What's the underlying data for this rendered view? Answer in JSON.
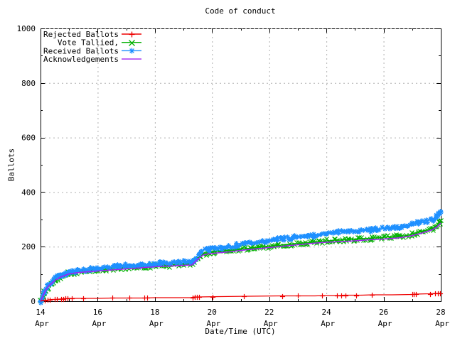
{
  "window": {
    "title": "Code of conduct"
  },
  "chart_data": {
    "type": "line",
    "title": "Code of conduct",
    "xlabel": "Date/Time (UTC)",
    "ylabel": "Ballots",
    "ylim": [
      0,
      1000
    ],
    "xlim_days": [
      14,
      28
    ],
    "x_month": "Apr",
    "x_major_ticks": [
      14,
      16,
      18,
      20,
      22,
      24,
      26,
      28
    ],
    "y_major_ticks": [
      0,
      200,
      400,
      600,
      800,
      1000
    ],
    "y_minor_step": 100,
    "grid": "dashed-gray",
    "grid_color": "#b0b0b0",
    "legend_position": "top-left-inside",
    "series": [
      {
        "name": "Rejected Ballots",
        "color": "#ee0000",
        "marker": "plus",
        "band": false,
        "points": [
          [
            14,
            0
          ],
          [
            14.08,
            2
          ],
          [
            14.18,
            3
          ],
          [
            14.28,
            5
          ],
          [
            14.4,
            6
          ],
          [
            14.52,
            7
          ],
          [
            14.65,
            8
          ],
          [
            14.8,
            9
          ],
          [
            15,
            10
          ],
          [
            15.3,
            11
          ],
          [
            16,
            11
          ],
          [
            16.5,
            12
          ],
          [
            17.6,
            12
          ],
          [
            18,
            13
          ],
          [
            19.25,
            13
          ],
          [
            19.38,
            15
          ],
          [
            19.5,
            16
          ],
          [
            20.3,
            17
          ],
          [
            21.3,
            18
          ],
          [
            22.4,
            19
          ],
          [
            22.9,
            20
          ],
          [
            23.6,
            20
          ],
          [
            24,
            21
          ],
          [
            24.45,
            21
          ],
          [
            24.6,
            22
          ],
          [
            25.2,
            22
          ],
          [
            25.6,
            23
          ],
          [
            26.3,
            24
          ],
          [
            27,
            25
          ],
          [
            27.1,
            26
          ],
          [
            27.6,
            27
          ],
          [
            27.8,
            28
          ],
          [
            27.92,
            29
          ],
          [
            28,
            30
          ]
        ],
        "marker_days": [
          14.15,
          14.25,
          14.32,
          14.5,
          14.57,
          14.73,
          14.8,
          14.87,
          14.95,
          15.1,
          15.5,
          16.5,
          17.1,
          17.62,
          17.73,
          19.33,
          19.4,
          19.47,
          19.54,
          20.02,
          21.1,
          22.45,
          23.0,
          23.85,
          24.38,
          24.52,
          24.68,
          25.05,
          25.58,
          27.0,
          27.06,
          27.13,
          27.62,
          27.8,
          27.9,
          27.97
        ]
      },
      {
        "name": "Vote Tallied,",
        "color": "#00b000",
        "marker": "cross",
        "band": true,
        "points": [
          [
            14,
            1
          ],
          [
            14.05,
            11
          ],
          [
            14.1,
            22
          ],
          [
            14.15,
            33
          ],
          [
            14.2,
            43
          ],
          [
            14.27,
            52
          ],
          [
            14.35,
            61
          ],
          [
            14.43,
            69
          ],
          [
            14.52,
            77
          ],
          [
            14.6,
            83
          ],
          [
            14.68,
            89
          ],
          [
            14.77,
            94
          ],
          [
            14.85,
            98
          ],
          [
            14.95,
            102
          ],
          [
            15.1,
            105
          ],
          [
            15.3,
            108
          ],
          [
            15.5,
            111
          ],
          [
            15.75,
            113
          ],
          [
            16,
            116
          ],
          [
            16.3,
            118
          ],
          [
            16.6,
            121
          ],
          [
            17,
            124
          ],
          [
            17.3,
            126
          ],
          [
            17.6,
            128
          ],
          [
            18,
            131
          ],
          [
            18.4,
            133
          ],
          [
            18.8,
            135
          ],
          [
            19.1,
            136
          ],
          [
            19.3,
            138
          ],
          [
            19.42,
            150
          ],
          [
            19.55,
            163
          ],
          [
            19.68,
            172
          ],
          [
            19.8,
            177
          ],
          [
            20,
            181
          ],
          [
            20.3,
            184
          ],
          [
            20.6,
            187
          ],
          [
            20.9,
            190
          ],
          [
            21.2,
            193
          ],
          [
            21.5,
            197
          ],
          [
            21.8,
            200
          ],
          [
            22.1,
            203
          ],
          [
            22.4,
            206
          ],
          [
            22.7,
            209
          ],
          [
            23,
            212
          ],
          [
            23.3,
            215
          ],
          [
            23.6,
            217
          ],
          [
            23.9,
            220
          ],
          [
            24.2,
            223
          ],
          [
            24.5,
            225
          ],
          [
            24.8,
            227
          ],
          [
            25.1,
            229
          ],
          [
            25.5,
            231
          ],
          [
            26,
            234
          ],
          [
            26.4,
            237
          ],
          [
            26.7,
            240
          ],
          [
            26.9,
            242
          ],
          [
            27.05,
            247
          ],
          [
            27.2,
            253
          ],
          [
            27.4,
            258
          ],
          [
            27.6,
            263
          ],
          [
            27.75,
            269
          ],
          [
            27.85,
            277
          ],
          [
            27.93,
            287
          ],
          [
            28,
            297
          ]
        ]
      },
      {
        "name": "Received Ballots",
        "color": "#1e90ff",
        "marker": "star",
        "band": true,
        "points": [
          [
            14,
            2
          ],
          [
            14.04,
            14
          ],
          [
            14.08,
            26
          ],
          [
            14.12,
            37
          ],
          [
            14.17,
            47
          ],
          [
            14.22,
            55
          ],
          [
            14.28,
            63
          ],
          [
            14.35,
            71
          ],
          [
            14.42,
            77
          ],
          [
            14.5,
            84
          ],
          [
            14.58,
            90
          ],
          [
            14.66,
            95
          ],
          [
            14.74,
            99
          ],
          [
            14.82,
            102
          ],
          [
            14.9,
            105
          ],
          [
            15,
            108
          ],
          [
            15.15,
            111
          ],
          [
            15.3,
            113
          ],
          [
            15.5,
            116
          ],
          [
            15.7,
            118
          ],
          [
            16,
            121
          ],
          [
            16.3,
            124
          ],
          [
            16.6,
            127
          ],
          [
            17,
            130
          ],
          [
            17.3,
            133
          ],
          [
            17.6,
            135
          ],
          [
            18,
            138
          ],
          [
            18.3,
            140
          ],
          [
            18.6,
            141
          ],
          [
            19,
            143
          ],
          [
            19.2,
            144
          ],
          [
            19.35,
            146
          ],
          [
            19.45,
            161
          ],
          [
            19.55,
            176
          ],
          [
            19.65,
            186
          ],
          [
            19.78,
            191
          ],
          [
            19.9,
            193
          ],
          [
            20,
            195
          ],
          [
            20.2,
            197
          ],
          [
            20.45,
            199
          ],
          [
            20.7,
            202
          ],
          [
            20.9,
            206
          ],
          [
            21.1,
            210
          ],
          [
            21.35,
            214
          ],
          [
            21.6,
            218
          ],
          [
            21.8,
            221
          ],
          [
            22,
            224
          ],
          [
            22.25,
            228
          ],
          [
            22.5,
            231
          ],
          [
            22.75,
            233
          ],
          [
            23,
            237
          ],
          [
            23.25,
            240
          ],
          [
            23.5,
            243
          ],
          [
            23.75,
            246
          ],
          [
            24,
            250
          ],
          [
            24.2,
            253
          ],
          [
            24.45,
            256
          ],
          [
            24.7,
            258
          ],
          [
            25,
            260
          ],
          [
            25.3,
            262
          ],
          [
            25.6,
            264
          ],
          [
            26,
            267
          ],
          [
            26.3,
            269
          ],
          [
            26.6,
            271
          ],
          [
            26.85,
            274
          ],
          [
            27,
            281
          ],
          [
            27.1,
            288
          ],
          [
            27.2,
            291
          ],
          [
            27.4,
            294
          ],
          [
            27.55,
            296
          ],
          [
            27.7,
            300
          ],
          [
            27.8,
            305
          ],
          [
            27.88,
            312
          ],
          [
            27.94,
            320
          ],
          [
            28,
            329
          ]
        ]
      },
      {
        "name": "Acknowledgements",
        "color": "#a020f0",
        "marker": "none",
        "band": false,
        "points": [
          [
            14,
            0
          ],
          [
            14.06,
            14
          ],
          [
            14.12,
            28
          ],
          [
            14.2,
            44
          ],
          [
            14.3,
            57
          ],
          [
            14.4,
            67
          ],
          [
            14.5,
            75
          ],
          [
            14.6,
            82
          ],
          [
            14.7,
            88
          ],
          [
            14.8,
            93
          ],
          [
            14.9,
            97
          ],
          [
            15,
            100
          ],
          [
            15.25,
            104
          ],
          [
            15.5,
            107
          ],
          [
            16,
            111
          ],
          [
            16.5,
            115
          ],
          [
            17,
            119
          ],
          [
            17.5,
            123
          ],
          [
            18,
            126
          ],
          [
            18.5,
            129
          ],
          [
            19,
            131
          ],
          [
            19.3,
            133
          ],
          [
            19.42,
            146
          ],
          [
            19.58,
            161
          ],
          [
            19.72,
            170
          ],
          [
            19.9,
            174
          ],
          [
            20.2,
            177
          ],
          [
            20.6,
            181
          ],
          [
            21,
            186
          ],
          [
            21.5,
            192
          ],
          [
            22,
            197
          ],
          [
            22.5,
            202
          ],
          [
            23,
            207
          ],
          [
            23.5,
            212
          ],
          [
            24,
            216
          ],
          [
            24.5,
            219
          ],
          [
            25,
            222
          ],
          [
            25.5,
            225
          ],
          [
            26,
            228
          ],
          [
            26.5,
            232
          ],
          [
            26.9,
            238
          ],
          [
            27.1,
            243
          ],
          [
            27.3,
            249
          ],
          [
            27.5,
            255
          ],
          [
            27.7,
            262
          ],
          [
            27.85,
            271
          ],
          [
            27.95,
            281
          ],
          [
            28,
            287
          ]
        ]
      }
    ]
  }
}
